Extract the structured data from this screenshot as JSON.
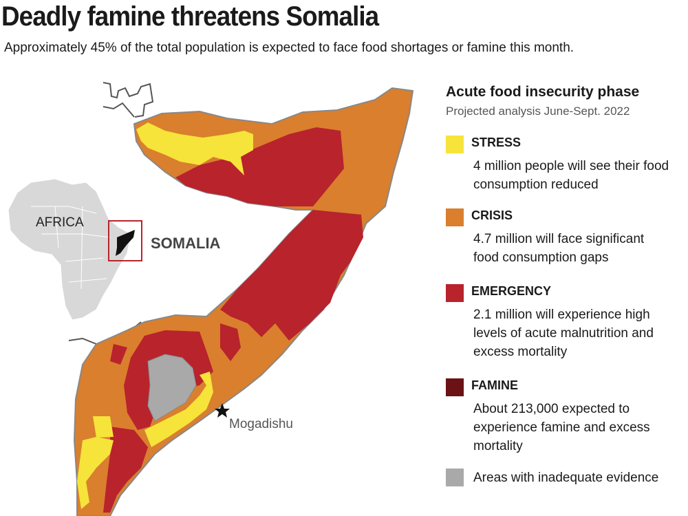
{
  "header": {
    "title": "Deadly famine threatens Somalia",
    "subtitle": "Approximately 45% of the total population is expected to face food shortages or famine this month."
  },
  "map": {
    "labels": {
      "africa": "AFRICA",
      "somalia": "SOMALIA",
      "capital": "Mogadishu"
    },
    "colors": {
      "stress": "#f6e43a",
      "crisis": "#d97f2e",
      "emergency": "#b8232c",
      "famine": "#6b1216",
      "inadequate": "#a9a9a9",
      "africa": "#d8d8d8",
      "inset_box": "#b8232c"
    }
  },
  "legend": {
    "title": "Acute food insecurity phase",
    "subtitle": "Projected analysis June-Sept. 2022",
    "items": [
      {
        "label": "STRESS",
        "desc_lines": [
          "4 million people will see their food",
          "consumption reduced"
        ],
        "color": "#f6e43a"
      },
      {
        "label": "CRISIS",
        "desc_lines": [
          "4.7 million will face significant",
          "food consumption gaps"
        ],
        "color": "#d97f2e"
      },
      {
        "label": "EMERGENCY",
        "desc_lines": [
          "2.1 million will experience high",
          "levels of acute malnutrition and",
          "excess mortality"
        ],
        "color": "#b8232c"
      },
      {
        "label": "FAMINE",
        "desc_lines": [
          "About 213,000 expected to",
          "experience famine and excess",
          "mortality"
        ],
        "color": "#6b1216"
      }
    ],
    "inadequate": {
      "label": "Areas with inadequate evidence",
      "color": "#a9a9a9"
    }
  }
}
